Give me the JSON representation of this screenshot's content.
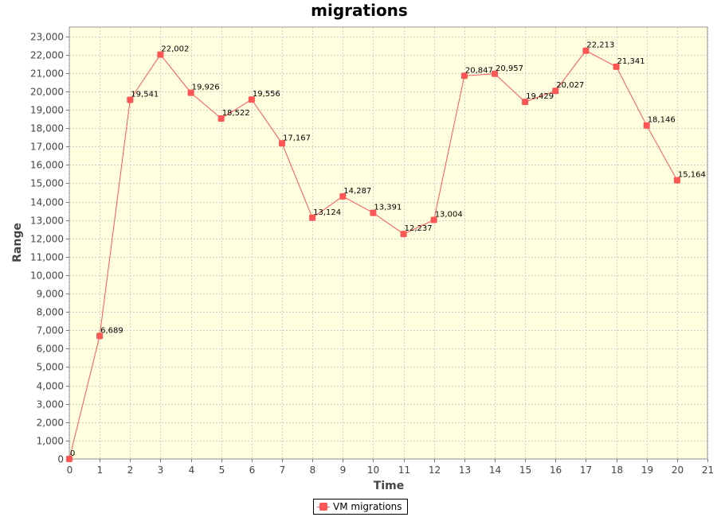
{
  "chart_data": {
    "type": "line",
    "title": "migrations",
    "xlabel": "Time",
    "ylabel": "Range",
    "xlim": [
      0,
      21
    ],
    "ylim": [
      0,
      23500
    ],
    "x_ticks": [
      "0",
      "1",
      "2",
      "3",
      "4",
      "5",
      "6",
      "7",
      "8",
      "9",
      "10",
      "11",
      "12",
      "13",
      "14",
      "15",
      "16",
      "17",
      "18",
      "19",
      "20",
      "21"
    ],
    "y_ticks": [
      "0",
      "1,000",
      "2,000",
      "3,000",
      "4,000",
      "5,000",
      "6,000",
      "7,000",
      "8,000",
      "9,000",
      "10,000",
      "11,000",
      "12,000",
      "13,000",
      "14,000",
      "15,000",
      "16,000",
      "17,000",
      "18,000",
      "19,000",
      "20,000",
      "21,000",
      "22,000",
      "23,000"
    ],
    "grid": true,
    "legend_position": "bottom-center",
    "plot_background": "#ffffe0",
    "series": [
      {
        "name": "VM migrations",
        "color": "#ff5555",
        "x": [
          0,
          1,
          2,
          3,
          4,
          5,
          6,
          7,
          8,
          9,
          10,
          11,
          12,
          13,
          14,
          15,
          16,
          17,
          18,
          19,
          20
        ],
        "values": [
          0,
          6689,
          19541,
          22002,
          19926,
          18522,
          19556,
          17167,
          13124,
          14287,
          13391,
          12237,
          13004,
          20847,
          20957,
          19429,
          20027,
          22213,
          21341,
          18146,
          15164
        ],
        "labels": [
          "0",
          "6,689",
          "19,541",
          "22,002",
          "19,926",
          "18,522",
          "19,556",
          "17,167",
          "13,124",
          "14,287",
          "13,391",
          "12,237",
          "13,004",
          "20,847",
          "20,957",
          "19,429",
          "20,027",
          "22,213",
          "21,341",
          "18,146",
          "15,164"
        ]
      }
    ]
  }
}
